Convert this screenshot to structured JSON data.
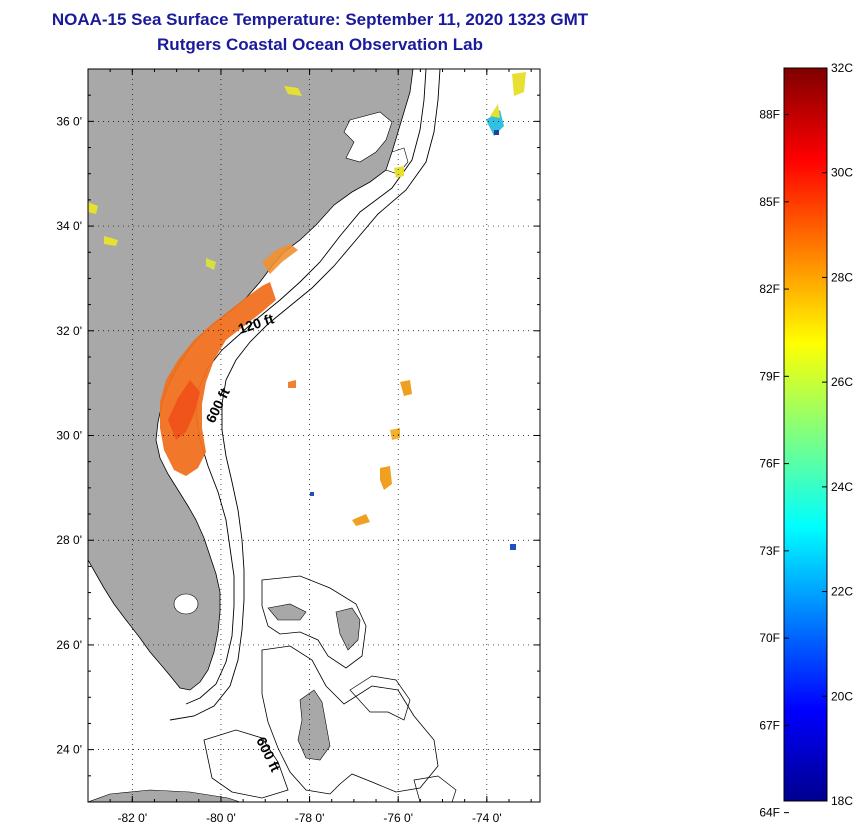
{
  "title": {
    "line1": "NOAA-15 Sea Surface Temperature:  September 11, 2020 1323 GMT",
    "line2": "Rutgers Coastal Ocean Observation Lab"
  },
  "map": {
    "lat_ticks": [
      {
        "value": 36,
        "label": "36 0'"
      },
      {
        "value": 34,
        "label": "34 0'"
      },
      {
        "value": 32,
        "label": "32 0'"
      },
      {
        "value": 30,
        "label": "30 0'"
      },
      {
        "value": 28,
        "label": "28 0'"
      },
      {
        "value": 26,
        "label": "26 0'"
      },
      {
        "value": 24,
        "label": "24 0'"
      }
    ],
    "lon_ticks": [
      {
        "value": -82,
        "label": "-82 0'"
      },
      {
        "value": -80,
        "label": "-80 0'"
      },
      {
        "value": -78,
        "label": "-78 0'"
      },
      {
        "value": -76,
        "label": "-76 0'"
      },
      {
        "value": -74,
        "label": "-74 0'"
      }
    ],
    "lat_range": [
      23,
      37
    ],
    "lon_range": [
      -83,
      -72.8
    ],
    "contours": [
      {
        "label": "120 ft"
      },
      {
        "label": "600 ft"
      },
      {
        "label": "600 ft"
      }
    ],
    "colors": {
      "land": "#a8a8a8",
      "ocean": "#ffffff"
    }
  },
  "colorbar": {
    "celsius": [
      "32C",
      "30C",
      "28C",
      "26C",
      "24C",
      "22C",
      "20C",
      "18C"
    ],
    "fahrenheit": [
      "88F",
      "85F",
      "82F",
      "79F",
      "76F",
      "73F",
      "70F",
      "67F",
      "64F"
    ],
    "range_c": [
      18,
      32
    ]
  }
}
